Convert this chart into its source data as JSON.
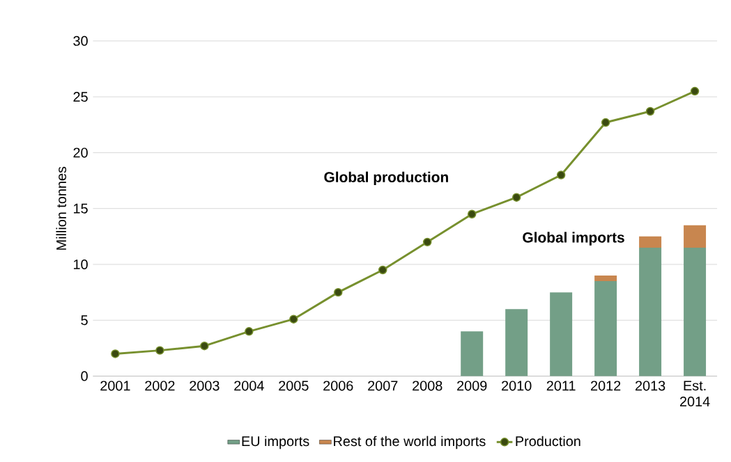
{
  "chart_data": {
    "type": "bar",
    "stacked": true,
    "ylabel": "Million tonnes",
    "categories": [
      "2001",
      "2002",
      "2003",
      "2004",
      "2005",
      "2006",
      "2007",
      "2008",
      "2009",
      "2010",
      "2011",
      "2012",
      "2013",
      "Est. 2014"
    ],
    "series": [
      {
        "name": "EU imports",
        "color": "#739f87",
        "values": [
          null,
          null,
          null,
          null,
          null,
          null,
          null,
          null,
          4.0,
          6.0,
          7.5,
          8.5,
          11.5,
          11.5
        ]
      },
      {
        "name": "Rest of the world imports",
        "color": "#c8864f",
        "values": [
          null,
          null,
          null,
          null,
          null,
          null,
          null,
          null,
          null,
          null,
          null,
          0.5,
          1.0,
          2.0
        ]
      },
      {
        "name": "Production",
        "type": "line",
        "color": "#77902e",
        "values": [
          2.0,
          2.3,
          2.7,
          4.0,
          5.1,
          7.5,
          9.5,
          12.0,
          14.5,
          16.0,
          18.0,
          22.7,
          23.7,
          25.5
        ]
      }
    ],
    "annotations": [
      "Global production",
      "Global imports"
    ],
    "ylim": [
      0,
      30
    ],
    "yticks": [
      0,
      5,
      10,
      15,
      20,
      25,
      30
    ],
    "grid": "y",
    "legend": "bottom",
    "marker": "circle",
    "line_style": "solid"
  }
}
